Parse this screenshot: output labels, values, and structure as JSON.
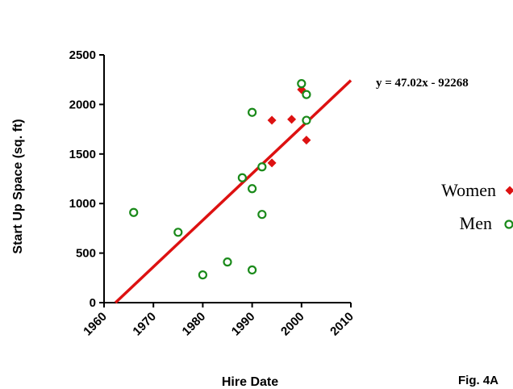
{
  "chart_data": {
    "type": "scatter",
    "title": "",
    "xlabel": "Hire Date",
    "ylabel": "Start Up Space (sq. ft)",
    "xlim": [
      1960,
      2010
    ],
    "ylim": [
      0,
      2500
    ],
    "x_ticks": [
      "1960",
      "1970",
      "1980",
      "1990",
      "2000",
      "2010"
    ],
    "y_ticks": [
      "0",
      "500",
      "1000",
      "1500",
      "2000",
      "2500"
    ],
    "grid": false,
    "legend_position": "right",
    "trendline": {
      "equation": "y = 47.02x - 92268",
      "slope": 47.02,
      "intercept": -92268,
      "color": "#dd1111"
    },
    "series": [
      {
        "name": "Women",
        "marker": "filled-diamond",
        "color": "#dd1111",
        "points": [
          {
            "x": 1994,
            "y": 1840
          },
          {
            "x": 1998,
            "y": 1850
          },
          {
            "x": 2000,
            "y": 2150
          },
          {
            "x": 1994,
            "y": 1410
          },
          {
            "x": 2001,
            "y": 1640
          }
        ]
      },
      {
        "name": "Men",
        "marker": "open-circle",
        "color": "#1a8a1a",
        "points": [
          {
            "x": 1966,
            "y": 910
          },
          {
            "x": 1975,
            "y": 710
          },
          {
            "x": 1980,
            "y": 280
          },
          {
            "x": 1985,
            "y": 410
          },
          {
            "x": 1988,
            "y": 1260
          },
          {
            "x": 1990,
            "y": 1920
          },
          {
            "x": 1990,
            "y": 1150
          },
          {
            "x": 1990,
            "y": 330
          },
          {
            "x": 1992,
            "y": 1370
          },
          {
            "x": 1992,
            "y": 890
          },
          {
            "x": 2000,
            "y": 2210
          },
          {
            "x": 2001,
            "y": 2100
          },
          {
            "x": 2001,
            "y": 1840
          }
        ]
      }
    ]
  },
  "figure_label": "Fig. 4A"
}
